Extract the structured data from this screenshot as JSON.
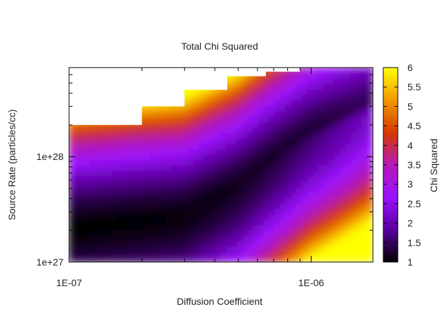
{
  "chart_data": {
    "type": "heatmap",
    "title": "Total Chi Squared",
    "xlabel": "Diffusion Coefficient",
    "ylabel": "Source Rate (particles/cc)",
    "colorbar_label": "Chi Squared",
    "x_scale": "log",
    "y_scale": "log",
    "xlim": [
      1e-07,
      1.8e-06
    ],
    "ylim": [
      1e+27,
      7e+28
    ],
    "x_ticks": [
      {
        "value": 1e-07,
        "label": "1E-07"
      },
      {
        "value": 1e-06,
        "label": "1E-06"
      }
    ],
    "y_ticks": [
      {
        "value": 1e+27,
        "label": "1e+27"
      },
      {
        "value": 1e+28,
        "label": "1e+28"
      }
    ],
    "colorbar_range": [
      1,
      6
    ],
    "colorbar_ticks": [
      "1",
      "1.5",
      "2",
      "2.5",
      "3",
      "3.5",
      "4",
      "4.5",
      "5",
      "5.5",
      "6"
    ],
    "palette": [
      "#000000",
      "#5a009c",
      "#9b12ff",
      "#b41ab4",
      "#d53a00",
      "#f29a00",
      "#ffff00"
    ],
    "grid": false,
    "blank_region_boundary": [
      {
        "x_from": 1e-07,
        "x_to": 2e-07,
        "y_max": 2e+28
      },
      {
        "x_from": 2e-07,
        "x_to": 3e-07,
        "y_max": 3e+28
      },
      {
        "x_from": 3e-07,
        "x_to": 4.5e-07,
        "y_max": 4.3e+28
      },
      {
        "x_from": 4.5e-07,
        "x_to": 6.5e-07,
        "y_max": 5.8e+28
      },
      {
        "x_from": 6.5e-07,
        "x_to": 9e-07,
        "y_max": 6.4e+28
      },
      {
        "x_from": 9e-07,
        "x_to": 1.8e-06,
        "y_max": 7e+28
      }
    ],
    "chi_squared_minimum_valley": [
      {
        "x": 1e-07,
        "y": 2.2e+27
      },
      {
        "x": 3e-07,
        "y": 2.8e+27
      },
      {
        "x": 5e-07,
        "y": 5e+27
      },
      {
        "x": 7e-07,
        "y": 9e+27
      },
      {
        "x": 1e-06,
        "y": 1.6e+28
      },
      {
        "x": 1.8e-06,
        "y": 3e+28
      }
    ]
  }
}
